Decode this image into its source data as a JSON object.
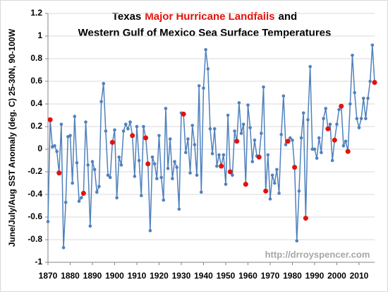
{
  "chart_data": {
    "type": "line",
    "title": {
      "parts": [
        "Texas",
        "Major Hurricane Landfalls",
        "and"
      ],
      "line2": "Western Gulf of Mexico Sea Surface Temperatures",
      "highlight_color": "#e3120b"
    },
    "ylabel": "June/July/Aug SST Anomaly (deg. C) 25-30N, 90-100W",
    "annotation": "http://drroyspencer.com",
    "x": [
      1870,
      1871,
      1872,
      1873,
      1874,
      1875,
      1876,
      1877,
      1878,
      1879,
      1880,
      1881,
      1882,
      1883,
      1884,
      1885,
      1886,
      1887,
      1888,
      1889,
      1890,
      1891,
      1892,
      1893,
      1894,
      1895,
      1896,
      1897,
      1898,
      1899,
      1900,
      1901,
      1902,
      1903,
      1904,
      1905,
      1906,
      1907,
      1908,
      1909,
      1910,
      1911,
      1912,
      1913,
      1914,
      1915,
      1916,
      1917,
      1918,
      1919,
      1920,
      1921,
      1922,
      1923,
      1924,
      1925,
      1926,
      1927,
      1928,
      1929,
      1930,
      1931,
      1932,
      1933,
      1934,
      1935,
      1936,
      1937,
      1938,
      1939,
      1940,
      1941,
      1942,
      1943,
      1944,
      1945,
      1946,
      1947,
      1948,
      1949,
      1950,
      1951,
      1952,
      1953,
      1954,
      1955,
      1956,
      1957,
      1958,
      1959,
      1960,
      1961,
      1962,
      1963,
      1964,
      1965,
      1966,
      1967,
      1968,
      1969,
      1970,
      1971,
      1972,
      1973,
      1974,
      1975,
      1976,
      1977,
      1978,
      1979,
      1980,
      1981,
      1982,
      1983,
      1984,
      1985,
      1986,
      1987,
      1988,
      1989,
      1990,
      1991,
      1992,
      1993,
      1994,
      1995,
      1996,
      1997,
      1998,
      1999,
      2000,
      2001,
      2002,
      2003,
      2004,
      2005,
      2006,
      2007,
      2008,
      2009,
      2010,
      2011,
      2012,
      2013,
      2014,
      2015,
      2016,
      2017
    ],
    "series": [
      {
        "color": "#4f81bd",
        "values": [
          -0.64,
          0.26,
          0.02,
          0.03,
          -0.02,
          -0.21,
          0.22,
          -0.87,
          -0.47,
          0.11,
          0.12,
          -0.3,
          0.29,
          -0.12,
          -0.46,
          -0.43,
          -0.39,
          0.24,
          -0.14,
          -0.68,
          -0.11,
          -0.18,
          -0.38,
          -0.33,
          0.42,
          0.58,
          0.16,
          -0.23,
          -0.25,
          0.06,
          0.17,
          -0.43,
          -0.07,
          -0.14,
          0.16,
          0.22,
          0.18,
          0.24,
          0.12,
          -0.24,
          0.2,
          -0.1,
          -0.41,
          0.2,
          0.1,
          -0.13,
          -0.72,
          -0.07,
          -0.13,
          -0.26,
          0.12,
          -0.25,
          -0.45,
          0.36,
          -0.17,
          0.09,
          -0.26,
          -0.11,
          -0.16,
          -0.53,
          0.32,
          0.31,
          -0.03,
          0.09,
          -0.21,
          0.21,
          0.04,
          -0.23,
          0.56,
          -0.38,
          0.54,
          0.88,
          0.71,
          0.18,
          -0.04,
          0.18,
          -0.15,
          -0.05,
          -0.15,
          -0.05,
          -0.31,
          0.3,
          -0.2,
          -0.23,
          0.16,
          0.07,
          0.41,
          0.14,
          0.22,
          -0.31,
          0.39,
          0.19,
          -0.11,
          0.08,
          -0.06,
          -0.07,
          0.14,
          0.55,
          -0.37,
          -0.05,
          -0.44,
          -0.23,
          -0.3,
          -0.18,
          -0.39,
          0.13,
          0.47,
          0.04,
          0.07,
          0.1,
          0.08,
          -0.16,
          -0.81,
          -0.37,
          0.1,
          0.32,
          -0.61,
          0.26,
          0.73,
          0.0,
          0.0,
          -0.08,
          0.1,
          -0.03,
          0.27,
          0.36,
          0.18,
          0.22,
          -0.1,
          0.08,
          0.22,
          0.35,
          0.38,
          0.03,
          0.07,
          -0.02,
          0.4,
          0.83,
          0.5,
          0.27,
          0.19,
          0.27,
          0.45,
          0.27,
          0.45,
          0.6,
          0.92,
          0.59
        ]
      },
      {
        "type": "scatter",
        "color": "#e3120b",
        "x": [
          1871,
          1875,
          1886,
          1899,
          1908,
          1914,
          1915,
          1931,
          1948,
          1952,
          1955,
          1959,
          1965,
          1968,
          1978,
          1981,
          1986,
          1996,
          1999,
          2002,
          2005,
          2017
        ],
        "values": [
          0.26,
          -0.21,
          -0.39,
          0.06,
          0.12,
          0.1,
          -0.13,
          0.31,
          -0.15,
          -0.2,
          0.07,
          -0.31,
          -0.07,
          -0.37,
          0.07,
          -0.16,
          -0.61,
          0.18,
          0.08,
          0.38,
          -0.02,
          0.59
        ]
      }
    ],
    "xlim": [
      1870,
      2017
    ],
    "xticks": [
      1870,
      1880,
      1890,
      1900,
      1910,
      1920,
      1930,
      1940,
      1950,
      1960,
      1970,
      1980,
      1990,
      2000,
      2010
    ],
    "ylim": [
      -1,
      1.2
    ],
    "yticks": [
      -1,
      -0.8,
      -0.6,
      -0.4,
      -0.2,
      0,
      0.2,
      0.4,
      0.6,
      0.8,
      1,
      1.2
    ],
    "grid": true
  }
}
